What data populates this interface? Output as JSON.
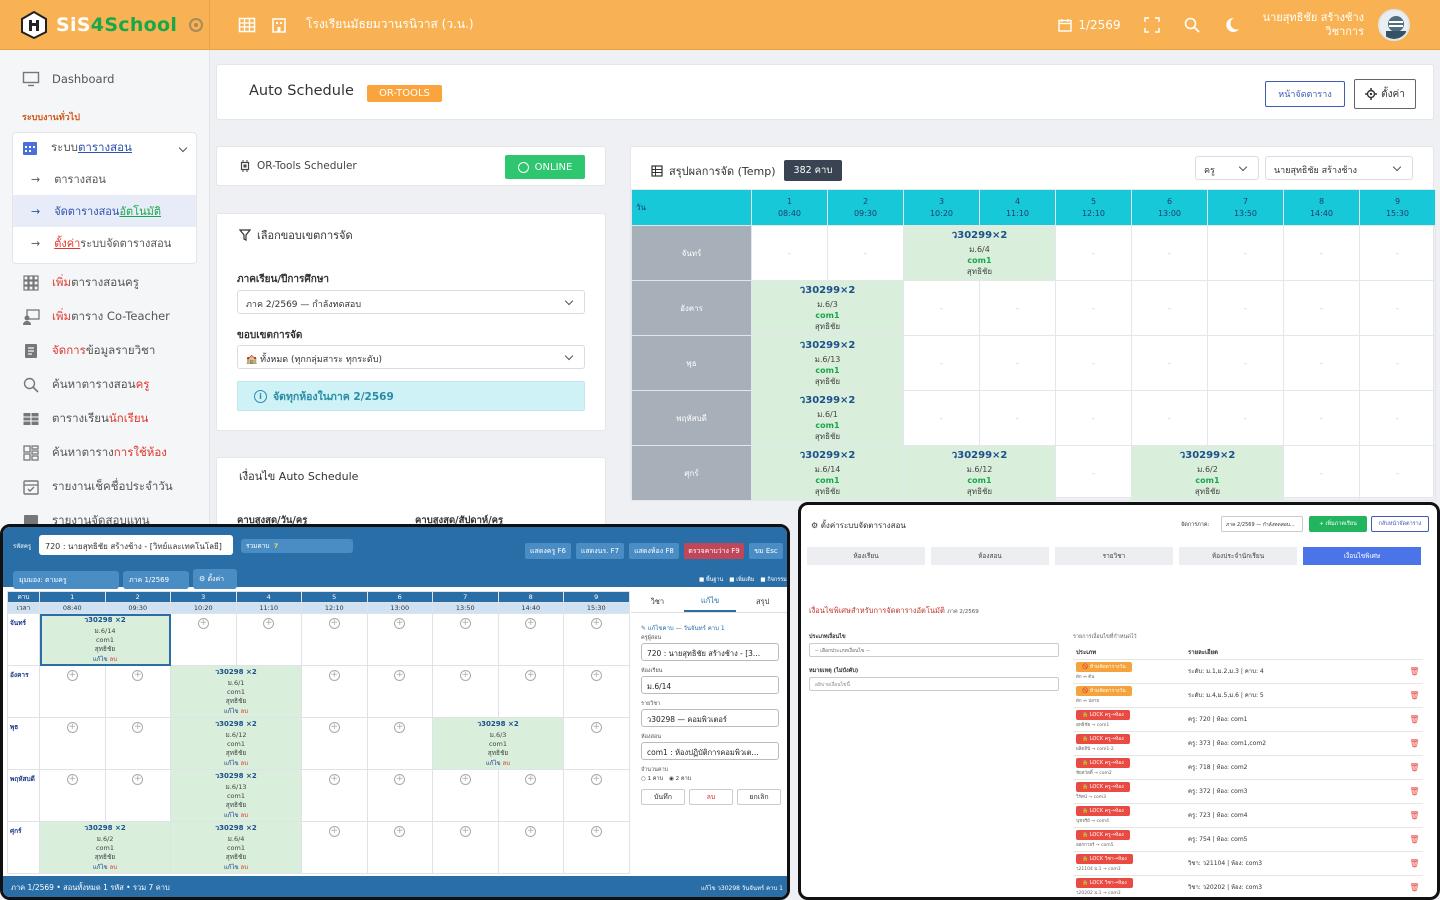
{
  "app": {
    "name_1": "SiS",
    "name_2": "4",
    "name_3": "School",
    "school": "โรงเรียนมัธยมวานรนิวาส (ว.น.)",
    "term": "1/2569",
    "user_name": "นายสุทธิชัย สร้างช้าง",
    "user_role": "วิชาการ"
  },
  "sidebar": {
    "dashboard": "Dashboard",
    "section": "ระบบงานทั่วไป",
    "schedule_menu_a": "ระบบ",
    "schedule_menu_b": "ตารางสอน",
    "sub1": "ตารางสอน",
    "sub2_a": "จัดตารางสอน",
    "sub2_b": "อัตโนมัติ",
    "sub3_a": "ตั้งค่า",
    "sub3_b": "ระบบจัดตารางสอน",
    "i1_a": "เพิ่ม",
    "i1_b": "ตารางสอนครู",
    "i2_a": "เพิ่ม",
    "i2_b": "ตาราง Co-Teacher",
    "i3_a": "จัดการ",
    "i3_b": "ข้อมูลรายวิชา",
    "i4_a": "ค้นหาตารางสอน",
    "i4_b": "ครู",
    "i5_a": "ตารางเรียน",
    "i5_b": "นักเรียน",
    "i6_a": "ค้นหาตาราง",
    "i6_b": "การใช้ห้อง",
    "i7": "รายงานเช็คชื่อประจำวัน",
    "i8": "รายงานจัดสอบแทน"
  },
  "header": {
    "title": "Auto Schedule",
    "badge": "OR-TOOLS",
    "btn_schedule": "หน้าจัดตาราง",
    "btn_settings": "ตั้งค่า"
  },
  "ortools": {
    "title": "OR-Tools Scheduler",
    "status": "ONLINE"
  },
  "scope": {
    "title": "เลือกขอบเขตการจัด",
    "term_label": "ภาคเรียน/ปีการศึกษา",
    "term_value": "ภาค 2/2569 — กำลังทดสอบ",
    "scope_label": "ขอบเขตการจัด",
    "scope_value": "🏫 ทั้งหมด (ทุกกลุ่มสาระ ทุกระดับ)",
    "info": "จัดทุกห้องในภาค 2/2569"
  },
  "conditions": {
    "title": "เงื่อนไข Auto Schedule",
    "max_day": "คาบสูงสุด/วัน/ครู",
    "max_week": "คาบสูงสุด/สัปดาห์/ครู"
  },
  "summary": {
    "title": "สรุปผลการจัด (Temp)",
    "count": "382 คาบ",
    "filter_type": "ครู",
    "filter_person": "นายสุทธิชัย สร้างช้าง",
    "day_header": "วัน",
    "periods": [
      {
        "n": "1",
        "t": "08:40"
      },
      {
        "n": "2",
        "t": "09:30"
      },
      {
        "n": "3",
        "t": "10:20"
      },
      {
        "n": "4",
        "t": "11:10"
      },
      {
        "n": "5",
        "t": "12:10"
      },
      {
        "n": "6",
        "t": "13:00"
      },
      {
        "n": "7",
        "t": "13:50"
      },
      {
        "n": "8",
        "t": "14:40"
      },
      {
        "n": "9",
        "t": "15:30"
      }
    ],
    "days": [
      "จันทร์",
      "อังคาร",
      "พุธ",
      "พฤหัสบดี",
      "ศุกร์"
    ],
    "empty": "-",
    "cells": {
      "mon": {
        "code": "ว30299×2",
        "cls": "ม.6/4",
        "room": "com1",
        "teacher": "สุทธิชัย"
      },
      "tue": {
        "code": "ว30299×2",
        "cls": "ม.6/3",
        "room": "com1",
        "teacher": "สุทธิชัย"
      },
      "wed": {
        "code": "ว30299×2",
        "cls": "ม.6/13",
        "room": "com1",
        "teacher": "สุทธิชัย"
      },
      "thu": {
        "code": "ว30299×2",
        "cls": "ม.6/1",
        "room": "com1",
        "teacher": "สุทธิชัย"
      },
      "fri1": {
        "code": "ว30299×2",
        "cls": "ม.6/14",
        "room": "com1",
        "teacher": "สุทธิชัย"
      },
      "fri2": {
        "code": "ว30299×2",
        "cls": "ม.6/12",
        "room": "com1",
        "teacher": "สุทธิชัย"
      },
      "fri3": {
        "code": "ว30299×2",
        "cls": "ม.6/2",
        "room": "com1",
        "teacher": "สุทธิชัย"
      }
    }
  },
  "overlay_editor": {
    "teacher_label": "รหัสครู",
    "teacher": "720 : นายสุทธิชัย สร้างช้าง - [วิทย์และเทคโนโลยี]",
    "total_label": "รวมคาบ",
    "total": "7",
    "btns": [
      "แสดงครู F6",
      "แสดงนร. F7",
      "แสดงห้อง F8",
      "ตรวจคาบว่าง F9",
      "ขม Esc"
    ],
    "view": "มุมมอง: ตามครู",
    "term": "ภาค 1/2569",
    "settings": "ตั้งค่า",
    "checks": [
      "พื้นฐาน",
      "เพิ่มเติม",
      "กิจกรรม"
    ],
    "period_label": "คาบ",
    "time_label": "เวลา",
    "cell_code": "ว30298",
    "cell_edit": "แก้ไข",
    "cell_del": "ลบ",
    "cells": [
      {
        "d": 0,
        "p": 0,
        "span": 2,
        "cls": "ม.6/14"
      },
      {
        "d": 1,
        "p": 2,
        "span": 2,
        "cls": "ม.6/1"
      },
      {
        "d": 2,
        "p": 2,
        "span": 2,
        "cls": "ม.6/12"
      },
      {
        "d": 2,
        "p": 6,
        "span": 2,
        "cls": "ม.6/3"
      },
      {
        "d": 3,
        "p": 2,
        "span": 2,
        "cls": "ม.6/13"
      },
      {
        "d": 4,
        "p": 0,
        "span": 2,
        "cls": "ม.6/2"
      },
      {
        "d": 4,
        "p": 2,
        "span": 2,
        "cls": "ม.6/4"
      }
    ],
    "tabs": [
      "วิชา",
      "แก้ไข",
      "สรุป"
    ],
    "edit_title": "✎ แก้ไขคาบ — วันจันทร์ คาบ 1",
    "f_teacher_label": "ครูผู้สอน",
    "f_teacher": "720 : นายสุทธิชัย สร้างช้าง - [3...",
    "f_class_label": "ห้องเรียน",
    "f_class": "ม.6/14",
    "f_subject_label": "รายวิชา",
    "f_subject": "ว30298 — คอมพิวเตอร์",
    "f_room_label": "ห้องสอน",
    "f_room": "com1 : ห้องปฏิบัติการคอมพิวเต...",
    "f_count_label": "จำนวนคาบ",
    "r1": "1 คาบ",
    "r2": "2 คาบ",
    "save": "บันทึก",
    "del": "ลบ",
    "cancel": "ยกเลิก",
    "footer": "ภาค 1/2569  •  สอนทั้งหมด 1 รหัส  •  รวม 7 คาบ",
    "footer_right": "แก้ไข ว30298 วันจันทร์ คาบ 1"
  },
  "overlay_settings": {
    "title": "ตั้งค่าระบบจัดตารางสอน",
    "term_label": "จัดการภาค:",
    "term": "ภาค 2/2569 — กำลังทดสอบ...",
    "btn_add": "+ เพิ่มภาคเรียน",
    "btn_back": "กลับหน้าจัดตาราง",
    "tabs": [
      "ห้องเรียน",
      "ห้องสอน",
      "รายวิชา",
      "ห้องประจำนักเรียน",
      "เงื่อนไขพิเศษ"
    ],
    "section": "เงื่อนไขพิเศษสำหรับการจัดตารางอัตโนมัติ",
    "section_term": "ภาค 2/2569",
    "type_label": "ประเภทเงื่อนไข",
    "type_value": "-- เลือกประเภทเงื่อนไข --",
    "note_label": "หมายเหตุ (ไม่บังคับ)",
    "note_ph": "อธิบายเงื่อนไขนี้",
    "list_title": "รายการเงื่อนไขที่กำหนดไว้",
    "col_type": "ประเภท",
    "col_detail": "รายละเอียด",
    "rows": [
      {
        "pill": "🚫 ห้ามจัดตารางวัน",
        "kind": "o",
        "sub": "ดัก ↔ ต้น",
        "detail": "ระดับ: ม.1,ม.2,ม.3 | คาบ: 4"
      },
      {
        "pill": "🚫 ห้ามจัดตารางวัน",
        "kind": "o",
        "sub": "ดัก ↔ ปลาย",
        "detail": "ระดับ: ม.4,ม.5,ม.6 | คาบ: 5"
      },
      {
        "pill": "🔒 LOCK ครู→ห้อง",
        "kind": "r",
        "sub": "สุทธิชัย → com1",
        "detail": "ครู: 720 | ห้อง: com1"
      },
      {
        "pill": "🔒 LOCK ครู→ห้อง",
        "kind": "r",
        "sub": "ผลิตสินี → com1-2",
        "detail": "ครู: 373 | ห้อง: com1,com2"
      },
      {
        "pill": "🔒 LOCK ครู→ห้อง",
        "kind": "r",
        "sub": "ชัยสวัสดิ์ → com2",
        "detail": "ครู: 718 | ห้อง: com2"
      },
      {
        "pill": "🔒 LOCK ครู→ห้อง",
        "kind": "r",
        "sub": "วิรัตน์ → com3",
        "detail": "ครู: 372 | ห้อง: com3"
      },
      {
        "pill": "🔒 LOCK ครู→ห้อง",
        "kind": "r",
        "sub": "นุชจรีย์ → com4",
        "detail": "ครู: 723 | ห้อง: com4"
      },
      {
        "pill": "🔒 LOCK ครู→ห้อง",
        "kind": "r",
        "sub": "ออกกายร์ → com5",
        "detail": "ครู: 754 | ห้อง: com5"
      },
      {
        "pill": "🔒 LOCK วิชา→ห้อง",
        "kind": "r",
        "sub": "ว21104 ม.1 → com3",
        "detail": "วิชา: ว21104 | ห้อง: com3"
      },
      {
        "pill": "🔒 LOCK วิชา→ห้อง",
        "kind": "r",
        "sub": "ว20202 ม.1 → com3",
        "detail": "วิชา: ว20202 | ห้อง: com3"
      }
    ]
  }
}
